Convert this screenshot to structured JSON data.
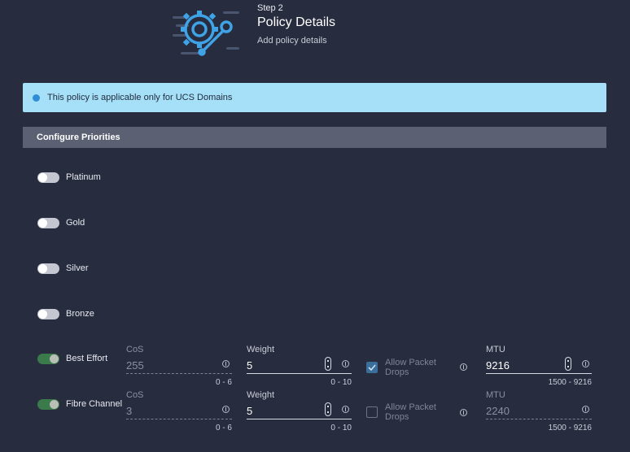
{
  "header": {
    "step_label": "Step 2",
    "title": "Policy Details",
    "subtitle": "Add policy details",
    "icon": "gear-wrench-icon"
  },
  "banner": {
    "text": "This policy is applicable only for UCS Domains",
    "icon": "info-dot-icon",
    "color": "#a6e0f8"
  },
  "section": {
    "title": "Configure Priorities"
  },
  "priorities": [
    {
      "label": "Platinum",
      "enabled": false
    },
    {
      "label": "Gold",
      "enabled": false
    },
    {
      "label": "Silver",
      "enabled": false
    },
    {
      "label": "Bronze",
      "enabled": false
    },
    {
      "label": "Best Effort",
      "enabled": true,
      "cos": {
        "label": "CoS",
        "value": "255",
        "range": "0 - 6"
      },
      "weight": {
        "label": "Weight",
        "value": "5",
        "range": "0 - 10"
      },
      "allow_packet_drops": {
        "line1": "Allow Packet",
        "line2": "Drops",
        "checked": true
      },
      "mtu": {
        "label": "MTU",
        "value": "9216",
        "range": "1500 - 9216"
      }
    },
    {
      "label": "Fibre Channel",
      "enabled": true,
      "cos": {
        "label": "CoS",
        "value": "3",
        "range": "0 - 6"
      },
      "weight": {
        "label": "Weight",
        "value": "5",
        "range": "0 - 10"
      },
      "allow_packet_drops": {
        "line1": "Allow Packet",
        "line2": "Drops",
        "checked": false
      },
      "mtu": {
        "label": "MTU",
        "value": "2240",
        "range": "1500 - 9216"
      }
    }
  ]
}
